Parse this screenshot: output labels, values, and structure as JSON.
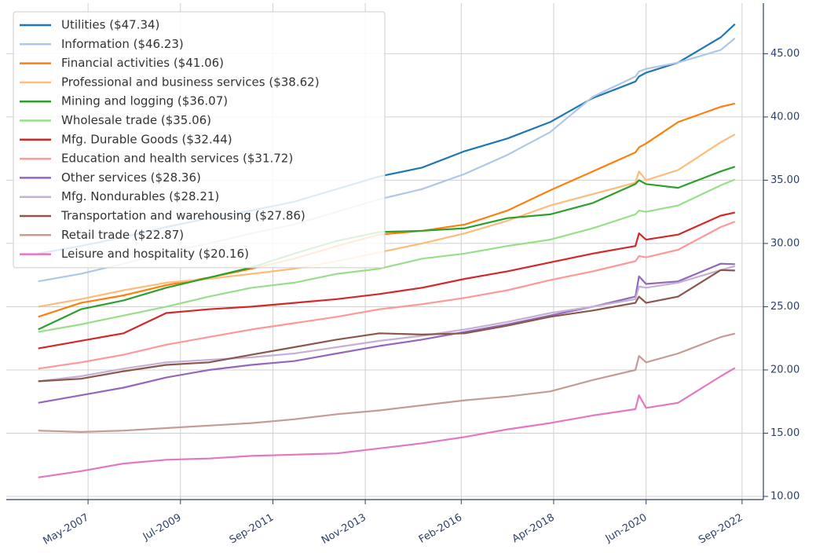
{
  "chart_data": {
    "type": "line",
    "x": [
      "2006-03",
      "2007-03",
      "2008-03",
      "2009-03",
      "2010-03",
      "2011-03",
      "2012-03",
      "2013-03",
      "2014-03",
      "2015-03",
      "2016-03",
      "2017-03",
      "2018-03",
      "2019-03",
      "2020-03",
      "2020-04",
      "2020-06",
      "2021-03",
      "2022-03",
      "2022-07"
    ],
    "xlim": [
      "2005-06",
      "2023-03"
    ],
    "xticks": [
      {
        "value": "2007-05",
        "label": "May-2007"
      },
      {
        "value": "2009-07",
        "label": "Jul-2009"
      },
      {
        "value": "2011-09",
        "label": "Sep-2011"
      },
      {
        "value": "2013-11",
        "label": "Nov-2013"
      },
      {
        "value": "2016-02",
        "label": "Feb-2016"
      },
      {
        "value": "2018-04",
        "label": "Apr-2018"
      },
      {
        "value": "2020-06",
        "label": "Jun-2020"
      },
      {
        "value": "2022-09",
        "label": "Sep-2022"
      }
    ],
    "ylim": [
      9.75,
      49
    ],
    "yticks": [
      {
        "value": 10,
        "label": "10.00"
      },
      {
        "value": 15,
        "label": "15.00"
      },
      {
        "value": 20,
        "label": "20.00"
      },
      {
        "value": 25,
        "label": "25.00"
      },
      {
        "value": 30,
        "label": "30.00"
      },
      {
        "value": 35,
        "label": "35.00"
      },
      {
        "value": 40,
        "label": "40.00"
      },
      {
        "value": 45,
        "label": "45.00"
      }
    ],
    "grid": true,
    "legend": "upper left",
    "series": [
      {
        "name": "Utilities ($47.34)",
        "color": "#1f77b4",
        "values": [
          29.2,
          29.8,
          30.5,
          31.3,
          32.0,
          32.6,
          33.3,
          34.3,
          35.3,
          36.0,
          37.3,
          38.3,
          39.6,
          41.5,
          42.8,
          43.2,
          43.5,
          44.3,
          46.3,
          47.34
        ]
      },
      {
        "name": "Information ($46.23)",
        "color": "#aec7e8",
        "values": [
          27.0,
          27.6,
          28.4,
          29.3,
          30.0,
          30.8,
          31.5,
          32.5,
          33.5,
          34.3,
          35.5,
          37.0,
          38.8,
          41.6,
          43.2,
          43.6,
          43.8,
          44.3,
          45.3,
          46.23
        ]
      },
      {
        "name": "Financial activities ($41.06)",
        "color": "#ff7f0e",
        "values": [
          24.2,
          25.3,
          25.9,
          26.7,
          27.3,
          28.0,
          28.8,
          29.8,
          30.7,
          31.0,
          31.5,
          32.6,
          34.2,
          35.7,
          37.2,
          37.6,
          37.9,
          39.6,
          40.8,
          41.06
        ]
      },
      {
        "name": "Professional and business services ($38.62)",
        "color": "#ffbb78",
        "values": [
          25.0,
          25.6,
          26.3,
          26.9,
          27.2,
          27.6,
          28.0,
          28.6,
          29.3,
          30.0,
          30.8,
          31.8,
          33.0,
          33.9,
          34.8,
          35.7,
          35.0,
          35.8,
          38.0,
          38.62
        ]
      },
      {
        "name": "Mining and logging ($36.07)",
        "color": "#2ca02c",
        "values": [
          23.2,
          24.8,
          25.5,
          26.5,
          27.3,
          28.1,
          29.2,
          30.2,
          30.9,
          31.0,
          31.2,
          32.0,
          32.3,
          33.2,
          34.7,
          35.0,
          34.7,
          34.4,
          35.7,
          36.07
        ]
      },
      {
        "name": "Wholesale trade ($35.06)",
        "color": "#98df8a",
        "values": [
          23.0,
          23.6,
          24.3,
          25.0,
          25.8,
          26.5,
          26.9,
          27.6,
          28.0,
          28.8,
          29.2,
          29.8,
          30.3,
          31.2,
          32.3,
          32.6,
          32.5,
          33.0,
          34.6,
          35.06
        ]
      },
      {
        "name": "Mfg. Durable Goods ($32.44)",
        "color": "#d62728",
        "values": [
          21.7,
          22.3,
          22.9,
          24.5,
          24.8,
          25.0,
          25.3,
          25.6,
          26.0,
          26.5,
          27.2,
          27.8,
          28.5,
          29.2,
          29.8,
          30.8,
          30.3,
          30.7,
          32.2,
          32.44
        ]
      },
      {
        "name": "Education and health services ($31.72)",
        "color": "#ff9896",
        "values": [
          20.1,
          20.6,
          21.2,
          22.0,
          22.6,
          23.2,
          23.7,
          24.2,
          24.8,
          25.2,
          25.7,
          26.3,
          27.1,
          27.8,
          28.6,
          29.0,
          28.9,
          29.5,
          31.3,
          31.72
        ]
      },
      {
        "name": "Other services ($28.36)",
        "color": "#9467bd",
        "values": [
          17.4,
          18.0,
          18.6,
          19.4,
          20.0,
          20.4,
          20.7,
          21.3,
          21.9,
          22.4,
          23.0,
          23.6,
          24.3,
          25.0,
          25.8,
          27.4,
          26.8,
          27.0,
          28.4,
          28.36
        ]
      },
      {
        "name": "Mfg. Nondurables ($28.21)",
        "color": "#c5b0d5",
        "values": [
          19.1,
          19.5,
          20.1,
          20.6,
          20.8,
          21.0,
          21.3,
          21.8,
          22.3,
          22.7,
          23.2,
          23.8,
          24.5,
          25.0,
          25.6,
          26.6,
          26.5,
          26.9,
          27.9,
          28.21
        ]
      },
      {
        "name": "Transportation and warehousing ($27.86)",
        "color": "#8c564b",
        "values": [
          19.1,
          19.3,
          19.9,
          20.4,
          20.6,
          21.2,
          21.8,
          22.4,
          22.9,
          22.8,
          22.9,
          23.5,
          24.2,
          24.7,
          25.3,
          25.8,
          25.3,
          25.8,
          27.9,
          27.86
        ]
      },
      {
        "name": "Retail trade ($22.87)",
        "color": "#c49c94",
        "values": [
          15.2,
          15.1,
          15.2,
          15.4,
          15.6,
          15.8,
          16.1,
          16.5,
          16.8,
          17.2,
          17.6,
          17.9,
          18.3,
          19.2,
          20.0,
          21.1,
          20.6,
          21.3,
          22.6,
          22.87
        ]
      },
      {
        "name": "Leisure and hospitality ($20.16)",
        "color": "#e377c2",
        "values": [
          11.5,
          12.0,
          12.6,
          12.9,
          13.0,
          13.2,
          13.3,
          13.4,
          13.8,
          14.2,
          14.7,
          15.3,
          15.8,
          16.4,
          16.9,
          18.0,
          17.0,
          17.4,
          19.5,
          20.16
        ]
      }
    ]
  }
}
